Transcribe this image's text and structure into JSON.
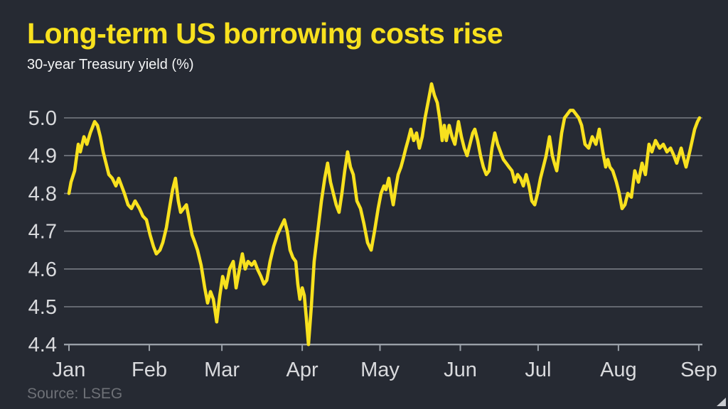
{
  "header": {
    "title": "Long-term US borrowing costs rise",
    "subtitle": "30-year Treasury yield (%)"
  },
  "footer": {
    "source": "Source: LSEG"
  },
  "icons": {
    "resize_corner": "resize-corner-triangle"
  },
  "colors": {
    "background": "#262a33",
    "accent_yellow": "#f8e11e",
    "line": "#f8e11e",
    "gridline": "#787c84",
    "axis_line": "#9aa0a8",
    "axis_text": "#d9dadd",
    "subtitle_text": "#f5f6f7",
    "source_text": "#6e7177",
    "resize_corner": "#c9cbd0"
  },
  "chart_data": {
    "type": "line",
    "title": "Long-term US borrowing costs rise",
    "subtitle": "30-year Treasury yield (%)",
    "ylabel": "30-year Treasury yield (%)",
    "xlabel": "",
    "ylim": [
      4.4,
      5.1
    ],
    "grid": true,
    "legend_position": "none",
    "y_ticks": [
      5.0,
      4.9,
      4.8,
      4.7,
      4.6,
      4.5,
      4.4
    ],
    "x_ticks": [
      {
        "label": "Jan",
        "day": 0
      },
      {
        "label": "Feb",
        "day": 31
      },
      {
        "label": "Mar",
        "day": 59
      },
      {
        "label": "Apr",
        "day": 90
      },
      {
        "label": "May",
        "day": 120
      },
      {
        "label": "Jun",
        "day": 151
      },
      {
        "label": "Jul",
        "day": 181
      },
      {
        "label": "Aug",
        "day": 212
      },
      {
        "label": "Sep",
        "day": 243
      }
    ],
    "series_name": "30-year US Treasury yield (%)",
    "points": [
      [
        0,
        4.8
      ],
      [
        0.8,
        4.83
      ],
      [
        2.2,
        4.86
      ],
      [
        3.6,
        4.93
      ],
      [
        4.4,
        4.91
      ],
      [
        5.8,
        4.95
      ],
      [
        6.9,
        4.93
      ],
      [
        8.2,
        4.96
      ],
      [
        9.9,
        4.99
      ],
      [
        11,
        4.98
      ],
      [
        12.1,
        4.95
      ],
      [
        13.2,
        4.91
      ],
      [
        14.3,
        4.88
      ],
      [
        15.4,
        4.85
      ],
      [
        16.7,
        4.84
      ],
      [
        18.1,
        4.82
      ],
      [
        19.2,
        4.84
      ],
      [
        20.3,
        4.82
      ],
      [
        21.4,
        4.8
      ],
      [
        22.8,
        4.77
      ],
      [
        24.1,
        4.76
      ],
      [
        25.5,
        4.78
      ],
      [
        27.2,
        4.76
      ],
      [
        28.5,
        4.74
      ],
      [
        29.9,
        4.73
      ],
      [
        31.3,
        4.69
      ],
      [
        32.6,
        4.66
      ],
      [
        33.7,
        4.64
      ],
      [
        35.1,
        4.65
      ],
      [
        36.2,
        4.67
      ],
      [
        37.6,
        4.71
      ],
      [
        39,
        4.77
      ],
      [
        40,
        4.81
      ],
      [
        41.1,
        4.84
      ],
      [
        42.2,
        4.78
      ],
      [
        43.1,
        4.75
      ],
      [
        44.2,
        4.76
      ],
      [
        45.3,
        4.77
      ],
      [
        46.4,
        4.73
      ],
      [
        47.5,
        4.69
      ],
      [
        48.6,
        4.67
      ],
      [
        49.6,
        4.65
      ],
      [
        51,
        4.61
      ],
      [
        52.4,
        4.55
      ],
      [
        53.5,
        4.51
      ],
      [
        54.6,
        4.54
      ],
      [
        55.7,
        4.52
      ],
      [
        57,
        4.46
      ],
      [
        58.2,
        4.53
      ],
      [
        59.3,
        4.58
      ],
      [
        60.6,
        4.55
      ],
      [
        62,
        4.6
      ],
      [
        63.4,
        4.62
      ],
      [
        64.5,
        4.55
      ],
      [
        65.8,
        4.6
      ],
      [
        66.9,
        4.64
      ],
      [
        68,
        4.6
      ],
      [
        69.1,
        4.62
      ],
      [
        70.5,
        4.61
      ],
      [
        71.6,
        4.62
      ],
      [
        72.7,
        4.6
      ],
      [
        74.1,
        4.58
      ],
      [
        75.2,
        4.56
      ],
      [
        76.3,
        4.57
      ],
      [
        77.6,
        4.62
      ],
      [
        79,
        4.66
      ],
      [
        80.4,
        4.69
      ],
      [
        81.7,
        4.71
      ],
      [
        83.1,
        4.73
      ],
      [
        84.2,
        4.7
      ],
      [
        85.3,
        4.65
      ],
      [
        86.4,
        4.63
      ],
      [
        87.5,
        4.62
      ],
      [
        88.3,
        4.56
      ],
      [
        89.1,
        4.52
      ],
      [
        90,
        4.55
      ],
      [
        90.8,
        4.53
      ],
      [
        91.6,
        4.47
      ],
      [
        92.4,
        4.4
      ],
      [
        93.5,
        4.5
      ],
      [
        94.6,
        4.62
      ],
      [
        96,
        4.7
      ],
      [
        97.4,
        4.78
      ],
      [
        98.7,
        4.84
      ],
      [
        99.8,
        4.88
      ],
      [
        100.9,
        4.83
      ],
      [
        102,
        4.8
      ],
      [
        103.1,
        4.77
      ],
      [
        104.2,
        4.75
      ],
      [
        105.3,
        4.8
      ],
      [
        106.4,
        4.86
      ],
      [
        107.5,
        4.91
      ],
      [
        108.6,
        4.87
      ],
      [
        109.7,
        4.85
      ],
      [
        111.1,
        4.78
      ],
      [
        112.5,
        4.76
      ],
      [
        113.8,
        4.72
      ],
      [
        115.2,
        4.67
      ],
      [
        116.6,
        4.65
      ],
      [
        117.9,
        4.7
      ],
      [
        119.3,
        4.76
      ],
      [
        120.4,
        4.8
      ],
      [
        121.5,
        4.82
      ],
      [
        122.3,
        4.81
      ],
      [
        123.4,
        4.84
      ],
      [
        124.3,
        4.8
      ],
      [
        125.1,
        4.77
      ],
      [
        126.2,
        4.82
      ],
      [
        127,
        4.85
      ],
      [
        128.1,
        4.87
      ],
      [
        128.9,
        4.89
      ],
      [
        130,
        4.92
      ],
      [
        130.8,
        4.94
      ],
      [
        131.9,
        4.97
      ],
      [
        133,
        4.94
      ],
      [
        134.1,
        4.96
      ],
      [
        135.2,
        4.92
      ],
      [
        136.3,
        4.95
      ],
      [
        137.4,
        5.0
      ],
      [
        138.8,
        5.05
      ],
      [
        139.9,
        5.09
      ],
      [
        141,
        5.06
      ],
      [
        142.1,
        5.04
      ],
      [
        143.2,
        4.99
      ],
      [
        144,
        4.94
      ],
      [
        144.8,
        4.98
      ],
      [
        145.6,
        4.94
      ],
      [
        146.7,
        4.98
      ],
      [
        147.8,
        4.95
      ],
      [
        148.9,
        4.93
      ],
      [
        150.3,
        4.99
      ],
      [
        151.4,
        4.95
      ],
      [
        152.5,
        4.92
      ],
      [
        153.6,
        4.9
      ],
      [
        154.7,
        4.93
      ],
      [
        155.8,
        4.96
      ],
      [
        156.6,
        4.97
      ],
      [
        157.7,
        4.94
      ],
      [
        158.8,
        4.9
      ],
      [
        159.9,
        4.87
      ],
      [
        161,
        4.85
      ],
      [
        162.1,
        4.86
      ],
      [
        163.2,
        4.92
      ],
      [
        164.3,
        4.96
      ],
      [
        165.4,
        4.93
      ],
      [
        166.5,
        4.91
      ],
      [
        167.6,
        4.89
      ],
      [
        168.7,
        4.88
      ],
      [
        169.8,
        4.87
      ],
      [
        170.9,
        4.86
      ],
      [
        172,
        4.83
      ],
      [
        173.1,
        4.85
      ],
      [
        174.2,
        4.84
      ],
      [
        175.3,
        4.82
      ],
      [
        176.4,
        4.85
      ],
      [
        177.5,
        4.82
      ],
      [
        178.6,
        4.78
      ],
      [
        179.7,
        4.77
      ],
      [
        180.8,
        4.8
      ],
      [
        181.9,
        4.84
      ],
      [
        183,
        4.87
      ],
      [
        184.1,
        4.9
      ],
      [
        185.4,
        4.95
      ],
      [
        186.5,
        4.9
      ],
      [
        187.3,
        4.88
      ],
      [
        188.2,
        4.86
      ],
      [
        189,
        4.9
      ],
      [
        190.1,
        4.96
      ],
      [
        191.2,
        5.0
      ],
      [
        192.3,
        5.01
      ],
      [
        193.4,
        5.02
      ],
      [
        194.5,
        5.02
      ],
      [
        195.6,
        5.01
      ],
      [
        196.7,
        5.0
      ],
      [
        197.8,
        4.98
      ],
      [
        199.1,
        4.93
      ],
      [
        200.5,
        4.92
      ],
      [
        201.9,
        4.95
      ],
      [
        203.3,
        4.93
      ],
      [
        204.6,
        4.97
      ],
      [
        206,
        4.91
      ],
      [
        207.1,
        4.87
      ],
      [
        207.9,
        4.89
      ],
      [
        208.7,
        4.87
      ],
      [
        209.8,
        4.86
      ],
      [
        211.2,
        4.83
      ],
      [
        212.3,
        4.8
      ],
      [
        213.4,
        4.76
      ],
      [
        214.5,
        4.77
      ],
      [
        215.6,
        4.8
      ],
      [
        217,
        4.79
      ],
      [
        218.3,
        4.86
      ],
      [
        219.7,
        4.83
      ],
      [
        221.1,
        4.88
      ],
      [
        222.4,
        4.85
      ],
      [
        223.8,
        4.93
      ],
      [
        224.9,
        4.91
      ],
      [
        226.3,
        4.94
      ],
      [
        227.9,
        4.92
      ],
      [
        229.3,
        4.93
      ],
      [
        230.7,
        4.91
      ],
      [
        232.1,
        4.92
      ],
      [
        233.4,
        4.9
      ],
      [
        234.5,
        4.88
      ],
      [
        236.2,
        4.92
      ],
      [
        237.3,
        4.89
      ],
      [
        238.1,
        4.87
      ],
      [
        239.5,
        4.91
      ],
      [
        241.4,
        4.97
      ],
      [
        242.5,
        4.99
      ],
      [
        243.3,
        5.0
      ]
    ]
  }
}
